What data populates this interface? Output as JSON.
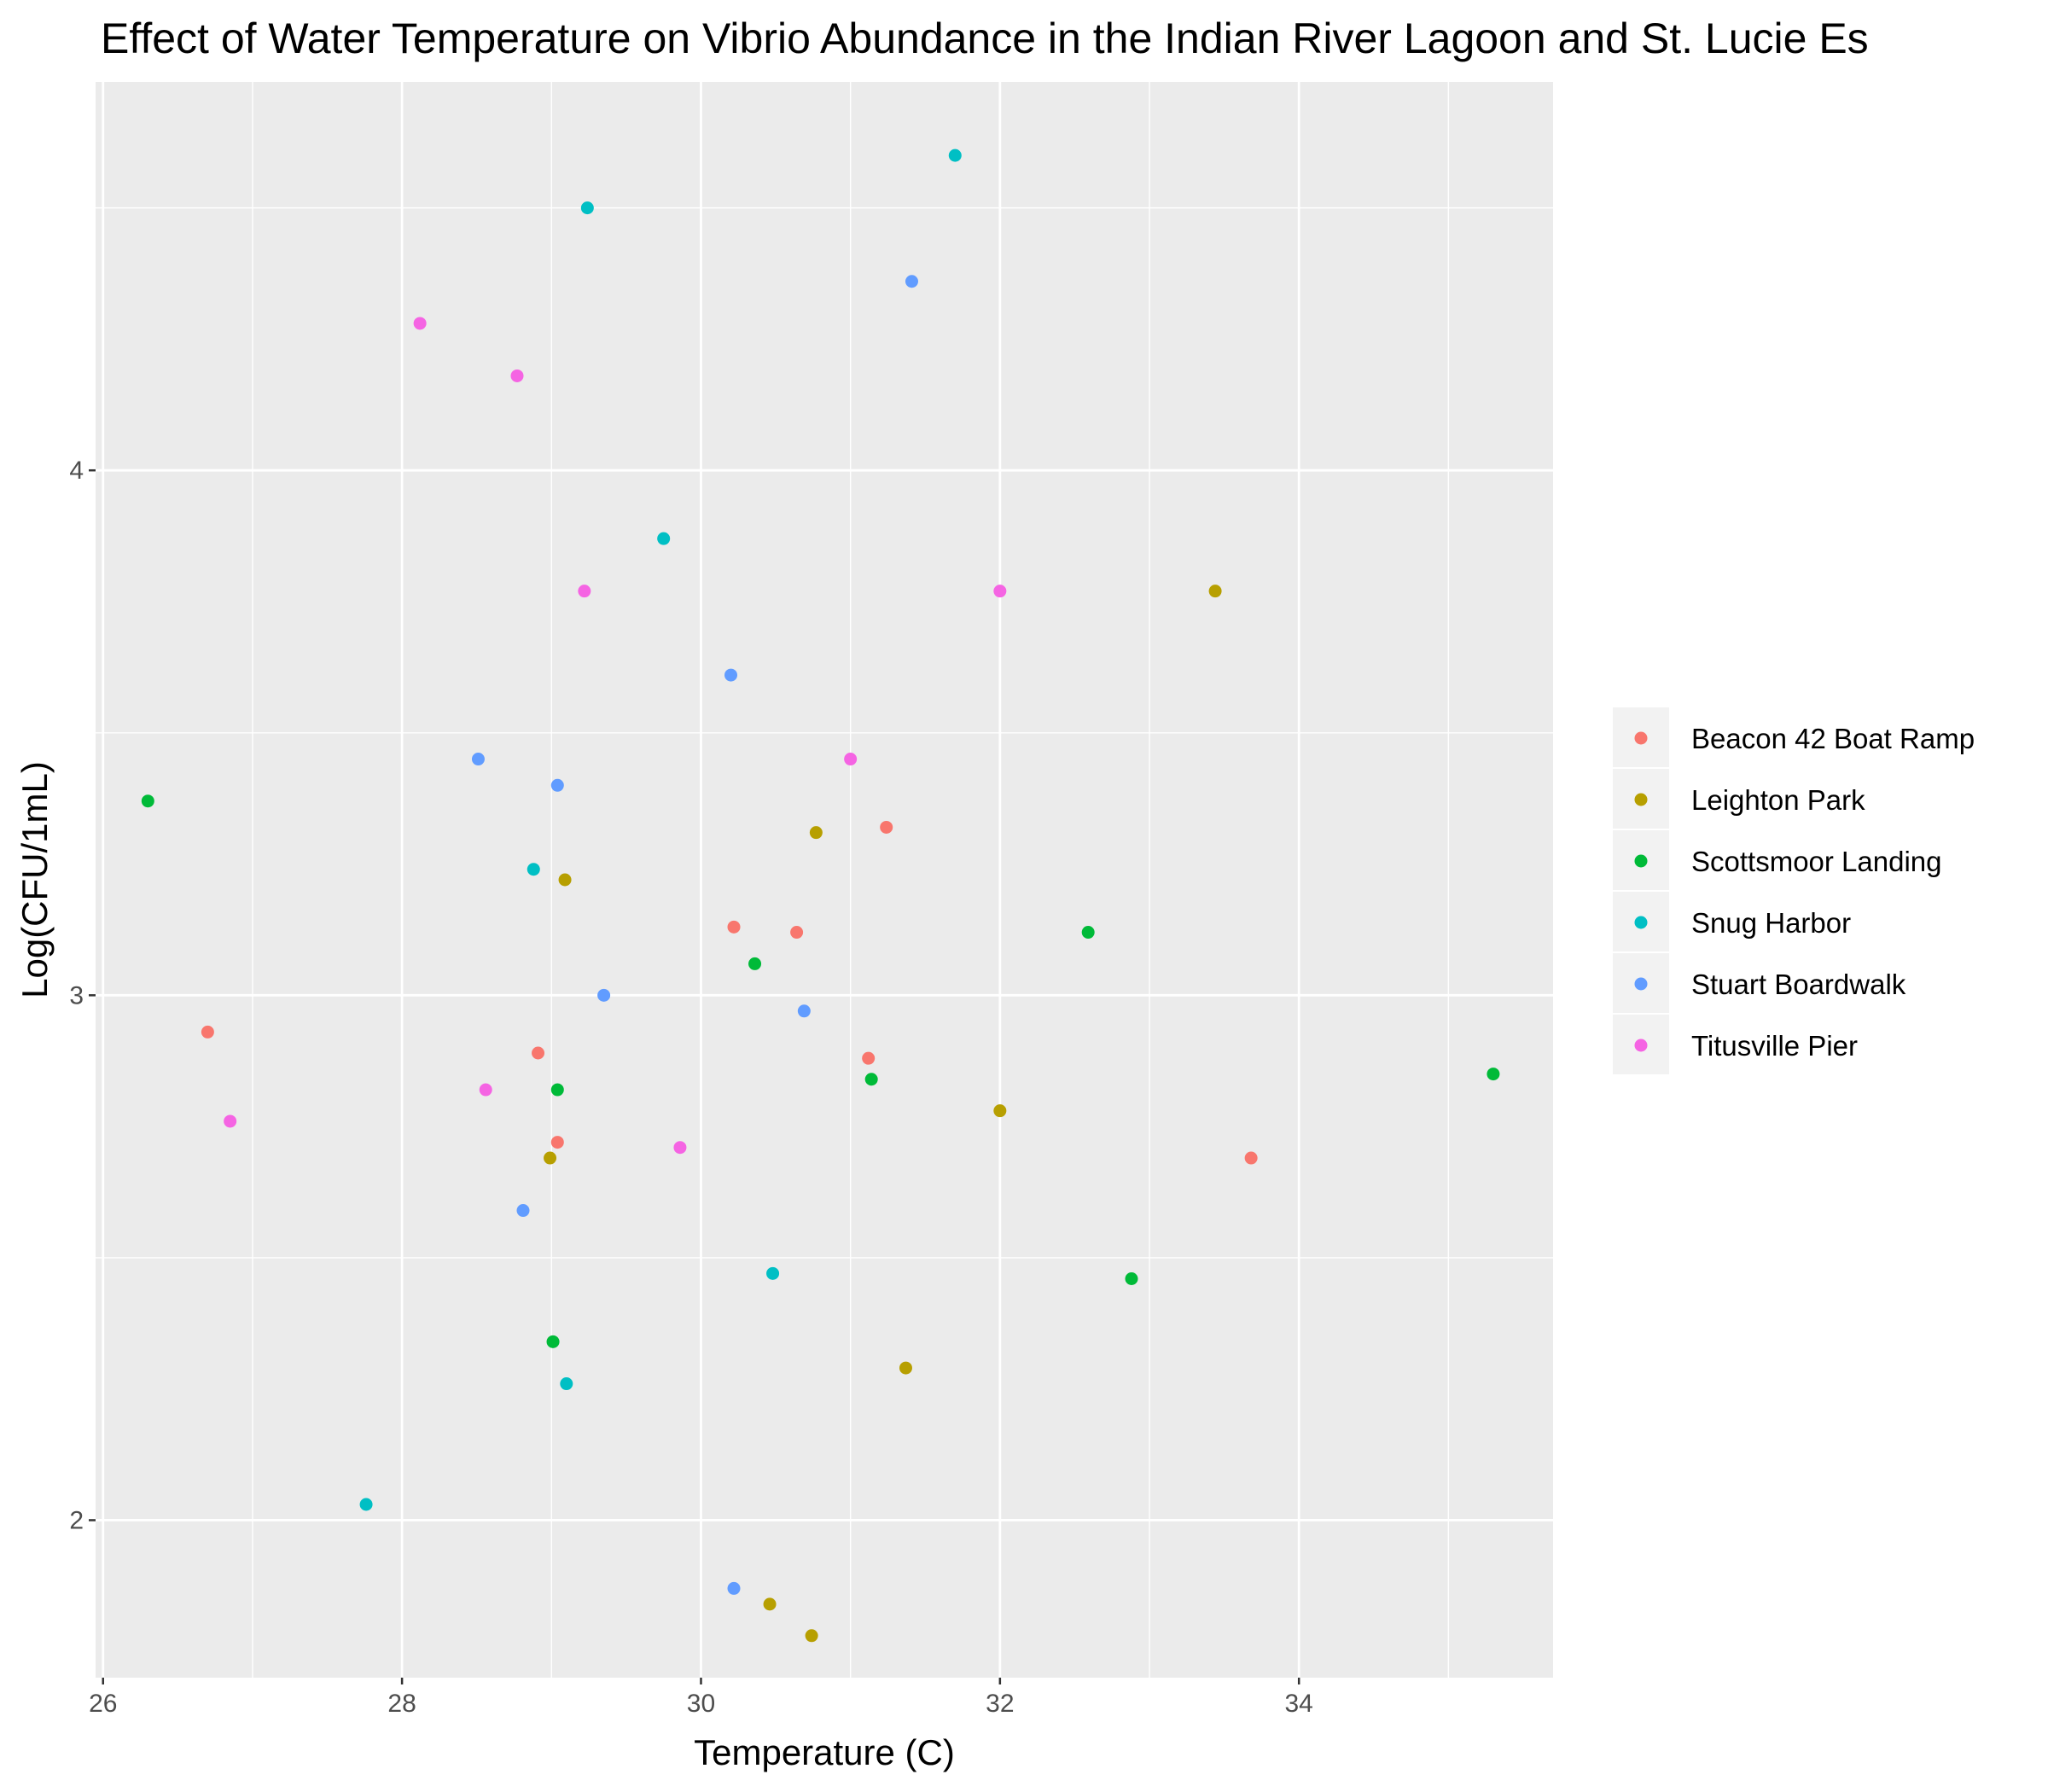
{
  "chart_data": {
    "type": "scatter",
    "title": "Effect of Water Temperature on Vibrio Abundance in the Indian River Lagoon and St. Lucie Es",
    "xlabel": "Temperature (C)",
    "ylabel": "Log(CFU/1mL)",
    "xlim": [
      25.95,
      35.7
    ],
    "ylim": [
      1.7,
      4.74
    ],
    "x_ticks": [
      26,
      28,
      30,
      32,
      34
    ],
    "y_ticks": [
      2,
      3,
      4
    ],
    "x_minor_ticks": [
      27,
      29,
      31,
      33,
      35
    ],
    "y_minor_ticks": [
      2.5,
      3.5,
      4.5
    ],
    "grid": true,
    "background": "#EBEBEB",
    "legend_position": "right",
    "series": [
      {
        "name": "Beacon 42 Boat Ramp",
        "color": "#F8766D",
        "points": [
          [
            26.7,
            2.93
          ],
          [
            28.91,
            2.89
          ],
          [
            29.04,
            2.72
          ],
          [
            30.22,
            3.13
          ],
          [
            30.64,
            3.12
          ],
          [
            31.12,
            2.88
          ],
          [
            31.24,
            3.32
          ],
          [
            33.68,
            2.69
          ]
        ]
      },
      {
        "name": "Leighton Park",
        "color": "#B79F00",
        "points": [
          [
            28.99,
            2.69
          ],
          [
            29.09,
            3.22
          ],
          [
            30.46,
            1.84
          ],
          [
            30.74,
            1.78
          ],
          [
            30.77,
            3.31
          ],
          [
            31.37,
            2.29
          ],
          [
            32.0,
            2.78
          ],
          [
            33.44,
            3.77
          ]
        ]
      },
      {
        "name": "Scottsmoor Landing",
        "color": "#00BA38",
        "points": [
          [
            26.3,
            3.37
          ],
          [
            29.01,
            2.34
          ],
          [
            29.04,
            2.82
          ],
          [
            30.36,
            3.06
          ],
          [
            31.14,
            2.84
          ],
          [
            32.59,
            3.12
          ],
          [
            32.88,
            2.46
          ],
          [
            35.3,
            2.85
          ]
        ]
      },
      {
        "name": "Snug Harbor",
        "color": "#00BFC4",
        "points": [
          [
            27.76,
            2.03
          ],
          [
            28.88,
            3.24
          ],
          [
            29.1,
            2.26
          ],
          [
            29.24,
            4.5
          ],
          [
            29.75,
            3.87
          ],
          [
            30.48,
            2.47
          ],
          [
            31.7,
            4.6
          ]
        ]
      },
      {
        "name": "Stuart Boardwalk",
        "color": "#619CFF",
        "points": [
          [
            28.51,
            3.45
          ],
          [
            28.81,
            2.59
          ],
          [
            29.04,
            3.4
          ],
          [
            29.35,
            3.0
          ],
          [
            30.2,
            3.61
          ],
          [
            30.22,
            1.87
          ],
          [
            30.69,
            2.97
          ],
          [
            31.41,
            4.36
          ]
        ]
      },
      {
        "name": "Titusville Pier",
        "color": "#F564E3",
        "points": [
          [
            26.85,
            2.76
          ],
          [
            28.12,
            4.28
          ],
          [
            28.56,
            2.82
          ],
          [
            28.77,
            4.18
          ],
          [
            29.22,
            3.77
          ],
          [
            29.86,
            2.71
          ],
          [
            31.0,
            3.45
          ],
          [
            32.0,
            3.77
          ]
        ]
      }
    ]
  }
}
